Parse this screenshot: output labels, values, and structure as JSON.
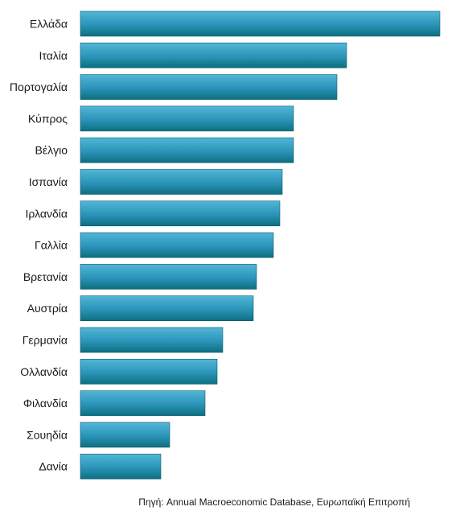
{
  "chart_data": {
    "type": "bar",
    "orientation": "horizontal",
    "categories": [
      "Ελλάδα",
      "Ιταλία",
      "Πορτογαλία",
      "Κύπρος",
      "Βέλγιο",
      "Ισπανία",
      "Ιρλανδία",
      "Γαλλία",
      "Βρετανία",
      "Αυστρία",
      "Γερμανία",
      "Ολλανδία",
      "Φιλανδία",
      "Σουηδία",
      "Δανία"
    ],
    "values": [
      447,
      331,
      319,
      265,
      265,
      251,
      248,
      240,
      219,
      215,
      177,
      170,
      155,
      111,
      100
    ],
    "axis_visible": false,
    "grid": false,
    "legend": "none",
    "colors": {
      "bar_top": "#52b6d8",
      "bar_mid": "#2a94b8",
      "bar_bottom": "#0d6e80",
      "bar_edge": "#0a5a68"
    }
  },
  "source_note": "Πηγή: Annual Macroeconomic Database, Ευρωπαϊκή Επιτροπή"
}
